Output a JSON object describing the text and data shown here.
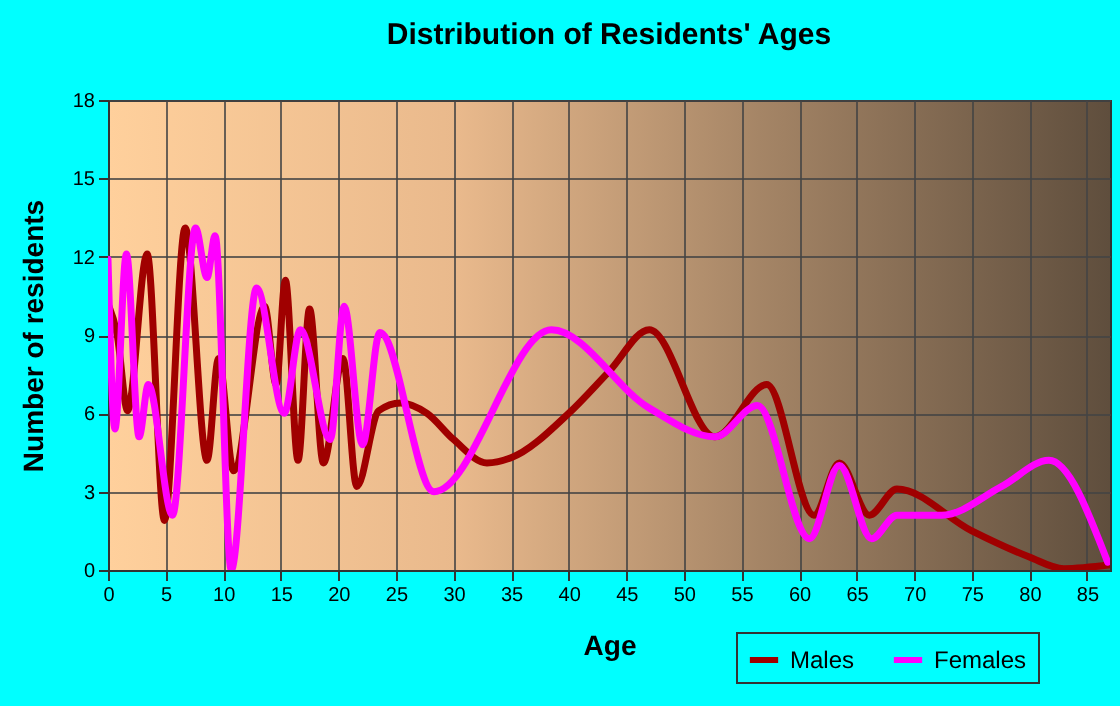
{
  "chart_data": {
    "type": "line",
    "title": "Distribution of Residents' Ages",
    "xlabel": "Age",
    "ylabel": "Number of residents",
    "xlim": [
      0,
      87
    ],
    "xticks": [
      0,
      5,
      10,
      15,
      20,
      25,
      30,
      35,
      40,
      45,
      50,
      55,
      60,
      65,
      70,
      75,
      80,
      85
    ],
    "ylim": [
      0,
      18
    ],
    "yticks": [
      0,
      3,
      6,
      9,
      12,
      15,
      18
    ],
    "grid": true,
    "legend": "bottom right",
    "marker": "none",
    "line_style": "solid",
    "series": [
      {
        "name": "Males",
        "color": "#a00000",
        "x": [
          0,
          0.8,
          1.7,
          3.4,
          4.9,
          6.7,
          8.6,
          9.6,
          10.9,
          13.6,
          14.6,
          15.4,
          16.5,
          17.5,
          18.7,
          20.4,
          21.6,
          23.5,
          25.4,
          27.7,
          30,
          32.9,
          35,
          40,
          43.5,
          47,
          52.7,
          57.2,
          61.3,
          63.5,
          66.1,
          68.5,
          75,
          80,
          83,
          87
        ],
        "values": [
          10.2,
          9,
          6.1,
          12.1,
          1.9,
          13.1,
          4.2,
          8.1,
          3.8,
          10.1,
          7.1,
          11.1,
          4.2,
          10,
          4.1,
          8.1,
          3.2,
          6.1,
          6.4,
          6,
          5,
          4.1,
          4.3,
          6,
          7.6,
          9.2,
          5.1,
          7.1,
          2.1,
          4.1,
          2.1,
          3.1,
          1.5,
          0.5,
          0.05,
          0.2
        ]
      },
      {
        "name": "Females",
        "color": "#ff00ff",
        "x": [
          0,
          0.6,
          1.6,
          2.7,
          3.5,
          5.6,
          7.6,
          8.6,
          9.3,
          10.7,
          12.9,
          15.3,
          16.7,
          19.3,
          20.5,
          22.1,
          23.6,
          28.3,
          38.5,
          47,
          52.7,
          56.4,
          60.9,
          63.5,
          66.3,
          68.5,
          72.4,
          77.6,
          81.7,
          86.8
        ],
        "values": [
          11.9,
          5.4,
          12.1,
          5.1,
          7.1,
          2.1,
          13.1,
          11.2,
          12.8,
          0,
          10.8,
          6,
          9.2,
          5,
          10.1,
          4.8,
          9.1,
          3,
          9.2,
          6.2,
          5.1,
          6.3,
          1.2,
          4,
          1.2,
          2.1,
          2.1,
          3.2,
          4.2,
          0.3
        ]
      }
    ]
  }
}
